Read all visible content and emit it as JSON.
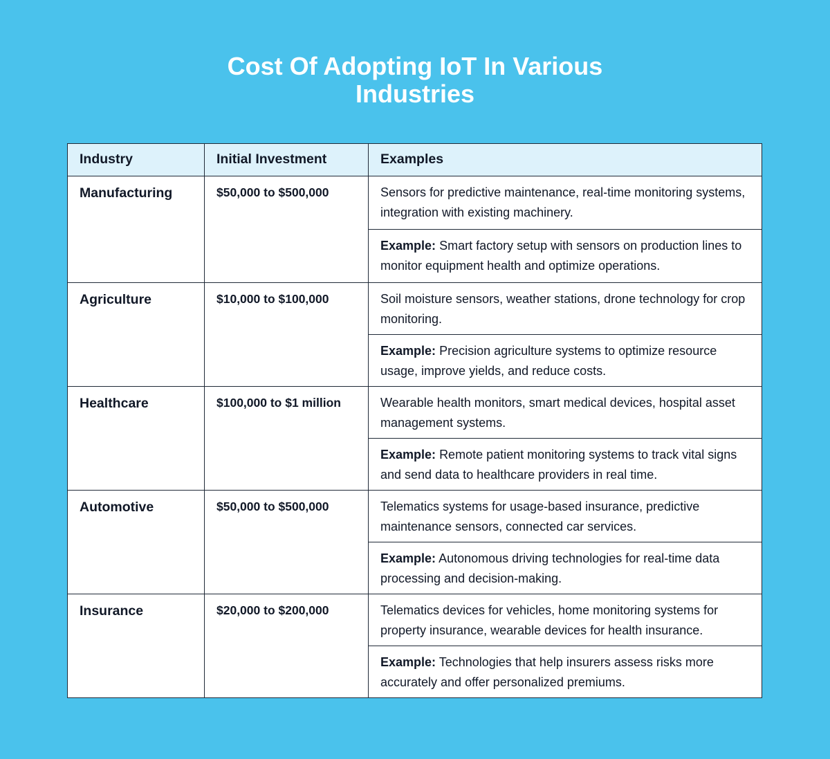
{
  "title_line1": "Cost Of Adopting IoT In Various",
  "title_line2": "Industries",
  "headers": [
    "Industry",
    "Initial Investment",
    "Examples"
  ],
  "example_prefix": "Example:",
  "rows": [
    {
      "industry": "Manufacturing",
      "investment": "$50,000 to $500,000",
      "description": "Sensors for predictive maintenance, real-time monitoring systems, integration with existing machinery.",
      "example": "Smart factory setup with sensors on production lines to monitor equipment health and optimize operations."
    },
    {
      "industry": "Agriculture",
      "investment": "$10,000 to $100,000",
      "description": "Soil moisture sensors, weather stations, drone technology for crop monitoring.",
      "example": "Precision agriculture systems to optimize resource usage, improve yields, and reduce costs."
    },
    {
      "industry": "Healthcare",
      "investment": "$100,000 to $1 million",
      "description": "Wearable health monitors, smart medical devices, hospital asset management systems.",
      "example": "Remote patient monitoring systems to track vital signs and send data to healthcare providers in real time."
    },
    {
      "industry": "Automotive",
      "investment": "$50,000 to $500,000",
      "description": "Telematics systems for usage-based insurance, predictive maintenance sensors, connected car services.",
      "example": "Autonomous driving technologies for real-time data processing and decision-making."
    },
    {
      "industry": "Insurance",
      "investment": "$20,000 to $200,000",
      "description": "Telematics devices for vehicles, home monitoring systems for property insurance, wearable devices for health insurance.",
      "example": "Technologies that help insurers assess risks more accurately and offer personalized premiums."
    }
  ]
}
